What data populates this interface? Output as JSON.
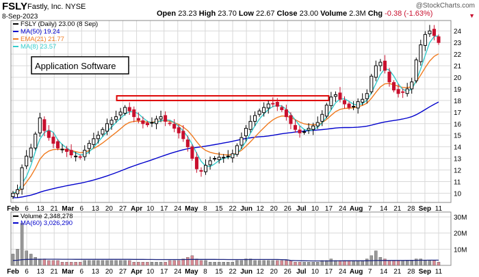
{
  "header": {
    "symbol": "FSLY",
    "company": "Fastly, Inc.",
    "exchange": "NYSE",
    "date": "8-Sep-2023",
    "open_label": "Open",
    "open": "23.23",
    "high_label": "High",
    "high": "23.70",
    "low_label": "Low",
    "low": "22.67",
    "close_label": "Close",
    "close": "23.00",
    "volume_label": "Volume",
    "volume": "2.3M",
    "chg_label": "Chg",
    "chg": "-0.38 (-1.63%)",
    "watermark": "@StockCharts.com"
  },
  "chart_data": {
    "type": "candlestick",
    "legend": [
      {
        "text": "FSLY (Daily) 23.00 (8 Sep)",
        "color": "#000000"
      },
      {
        "text": "MA(50) 19.24",
        "color": "#0000cc"
      },
      {
        "text": "EMA(21) 21.77",
        "color": "#f07a1e"
      },
      {
        "text": "MA(8) 23.57",
        "color": "#33cccc"
      }
    ],
    "annotation": "Application Software",
    "resistance_band": {
      "from": "Apr 3",
      "to": "Jul 12",
      "low": 18.0,
      "high": 18.4
    },
    "colors": {
      "up": "#000000",
      "down": "#c8102e",
      "ma50": "#0000cc",
      "ema21": "#f07a1e",
      "ma8": "#33cccc",
      "resistance": "#dd0000",
      "grid": "#d8d8d8"
    },
    "y_range": [
      9.2,
      24.9
    ],
    "y_ticks": [
      10,
      11,
      12,
      13,
      14,
      15,
      16,
      17,
      18,
      19,
      20,
      21,
      22,
      23,
      24
    ],
    "x_ticks": [
      "Feb",
      "6",
      "13",
      "21",
      "Mar",
      "6",
      "13",
      "20",
      "27",
      "Apr",
      "10",
      "17",
      "24",
      "May",
      "8",
      "15",
      "22",
      "Jun",
      "12",
      "20",
      "26",
      "Jul",
      "10",
      "17",
      "24",
      "Aug",
      "7",
      "14",
      "21",
      "28",
      "Sep",
      "11"
    ],
    "x_tick_bold": [
      "Feb",
      "Mar",
      "Apr",
      "May",
      "Jun",
      "Jul",
      "Aug",
      "Sep"
    ],
    "daily_close": [
      10.0,
      10.3,
      12.2,
      13.2,
      13.9,
      15.1,
      16.5,
      15.4,
      14.8,
      14.3,
      13.9,
      13.8,
      13.6,
      13.3,
      13.2,
      13.1,
      13.7,
      14.3,
      14.7,
      15.0,
      15.5,
      16.0,
      16.3,
      16.6,
      17.0,
      17.4,
      17.1,
      16.6,
      16.3,
      16.0,
      15.9,
      16.1,
      16.4,
      16.6,
      16.2,
      16.0,
      15.6,
      15.2,
      14.7,
      14.0,
      13.0,
      12.1,
      11.9,
      12.4,
      12.8,
      13.0,
      13.1,
      13.1,
      13.2,
      13.4,
      14.1,
      14.8,
      15.6,
      16.2,
      16.7,
      17.1,
      17.4,
      17.7,
      17.7,
      17.5,
      17.2,
      16.6,
      16.0,
      15.5,
      15.2,
      15.3,
      15.6,
      15.8,
      16.1,
      16.8,
      17.6,
      18.3,
      18.5,
      18.1,
      17.7,
      17.4,
      17.5,
      17.9,
      18.1,
      18.6,
      20.1,
      21.0,
      21.3,
      20.6,
      19.6,
      18.9,
      18.6,
      18.7,
      19.0,
      19.6,
      21.5,
      22.8,
      23.7,
      24.0,
      23.6,
      23.0
    ],
    "daily_volume_millions": [
      7,
      10,
      26,
      9,
      7,
      5,
      4,
      4,
      3,
      3,
      3,
      2,
      2,
      2,
      2,
      2,
      3,
      3,
      3,
      3,
      3,
      3,
      3,
      3,
      3,
      3,
      3,
      2,
      2,
      2,
      2,
      2,
      2,
      2,
      2,
      3,
      3,
      3,
      4,
      5,
      6,
      4,
      3,
      3,
      2,
      2,
      2,
      2,
      2,
      2,
      3,
      3,
      4,
      4,
      3,
      3,
      3,
      3,
      3,
      3,
      3,
      3,
      3,
      2,
      2,
      2,
      2,
      2,
      2,
      3,
      3,
      4,
      3,
      3,
      3,
      3,
      3,
      3,
      3,
      4,
      6,
      9,
      5,
      4,
      3,
      3,
      3,
      3,
      3,
      3,
      4,
      4,
      3,
      3,
      3,
      2
    ],
    "volume_panel": {
      "legend": [
        {
          "text": "Volume 2,348,278",
          "color": "#000000"
        },
        {
          "text": "MA(60) 3,026,290",
          "color": "#0000cc"
        }
      ],
      "y_range": [
        0,
        33
      ],
      "y_ticks": [
        10,
        20,
        30
      ],
      "y_tick_labels": [
        "10M",
        "20M",
        "30M"
      ],
      "colors": {
        "up": "#999999",
        "down": "#d98a94",
        "ma60": "#1a237e"
      }
    }
  }
}
